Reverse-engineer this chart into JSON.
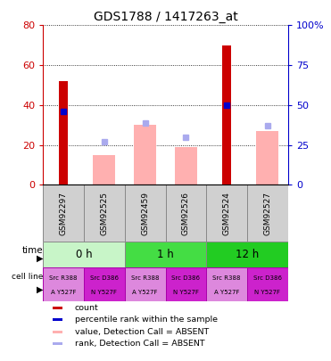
{
  "title": "GDS1788 / 1417263_at",
  "samples": [
    "GSM92297",
    "GSM92525",
    "GSM92459",
    "GSM92526",
    "GSM92524",
    "GSM92527"
  ],
  "count_values": [
    52,
    0,
    0,
    0,
    70,
    0
  ],
  "rank_values": [
    46,
    0,
    0,
    0,
    50,
    0
  ],
  "value_absent": [
    0,
    15,
    30,
    19,
    0,
    27
  ],
  "rank_absent": [
    0,
    27,
    39,
    30,
    0,
    37
  ],
  "ylim_left": [
    0,
    80
  ],
  "ylim_right": [
    0,
    100
  ],
  "yticks_left": [
    0,
    20,
    40,
    60,
    80
  ],
  "yticks_right": [
    0,
    25,
    50,
    75,
    100
  ],
  "time_groups": [
    {
      "label": "0 h",
      "start": 0,
      "end": 2,
      "color": "#c8f5c8"
    },
    {
      "label": "1 h",
      "start": 2,
      "end": 4,
      "color": "#44dd44"
    },
    {
      "label": "12 h",
      "start": 4,
      "end": 6,
      "color": "#22cc22"
    }
  ],
  "cell_line_labels": [
    [
      "Src R388",
      "A Y527F"
    ],
    [
      "Src D386",
      "N Y527F"
    ],
    [
      "Src R388",
      "A Y527F"
    ],
    [
      "Src D386",
      "N Y527F"
    ],
    [
      "Src R388",
      "A Y527F"
    ],
    [
      "Src D386",
      "N Y527F"
    ]
  ],
  "cell_line_colors": [
    "#dd88dd",
    "#cc22cc",
    "#dd88dd",
    "#cc22cc",
    "#dd88dd",
    "#cc22cc"
  ],
  "count_color": "#cc0000",
  "rank_color": "#0000cc",
  "value_absent_color": "#ffb0b0",
  "rank_absent_color": "#aaaaee",
  "ylabel_left_color": "#cc0000",
  "ylabel_right_color": "#0000cc",
  "ytick_label_right": [
    "0",
    "25",
    "50",
    "75",
    "100%"
  ],
  "ytick_label_left": [
    "0",
    "20",
    "40",
    "60",
    "80"
  ],
  "legend_items": [
    {
      "color": "#cc0000",
      "label": "count"
    },
    {
      "color": "#0000cc",
      "label": "percentile rank within the sample"
    },
    {
      "color": "#ffb0b0",
      "label": "value, Detection Call = ABSENT"
    },
    {
      "color": "#aaaaee",
      "label": "rank, Detection Call = ABSENT"
    }
  ]
}
